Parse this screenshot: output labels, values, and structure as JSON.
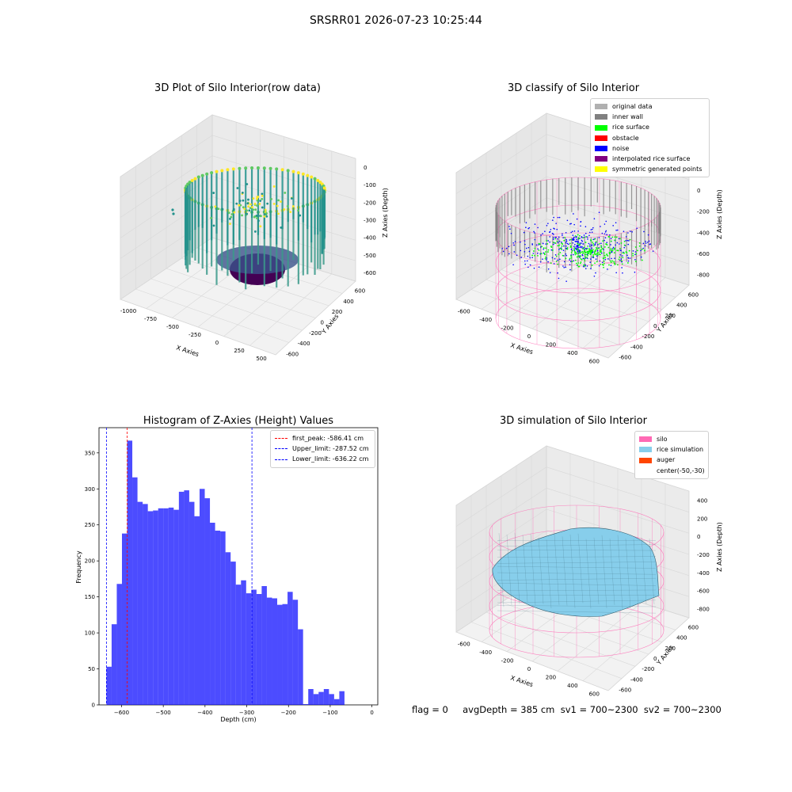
{
  "suptitle": "SRSRR01 2026-07-23 10:25:44",
  "footer": "flag = 0     avgDepth = 385 cm  sv1 = 700~2300  sv2 = 700~2300",
  "chart_data": [
    {
      "type": "scatter",
      "title": "3D Plot of Silo Interior(row data)",
      "xlabel": "X Axies",
      "ylabel": "Y Axies",
      "zlabel": "Z Axies (Depth)",
      "xticks": [
        "-1000",
        "-750",
        "-500",
        "-250",
        "0",
        "250",
        "500"
      ],
      "yticks": [
        "-600",
        "-400",
        "-200",
        "0",
        "200",
        "400",
        "600"
      ],
      "zticks": [
        "0",
        "-100",
        "-200",
        "-300",
        "-400",
        "-500",
        "-600"
      ],
      "colormap": "viridis"
    },
    {
      "type": "scatter",
      "title": "3D classify of Silo Interior",
      "xlabel": "X Axies",
      "ylabel": "Y Axies",
      "zlabel": "Z Axies (Depth)",
      "xticks": [
        "-600",
        "-400",
        "-200",
        "0",
        "200",
        "400",
        "600"
      ],
      "yticks": [
        "-600",
        "-400",
        "-200",
        "0",
        "200",
        "400",
        "600"
      ],
      "zticks": [
        "200",
        "0",
        "-200",
        "-400",
        "-600",
        "-800"
      ],
      "legend": [
        {
          "label": "original data",
          "color": "#b0b0b0"
        },
        {
          "label": "inner wall",
          "color": "#808080"
        },
        {
          "label": "rice surface",
          "color": "#00ff00"
        },
        {
          "label": "obstacle",
          "color": "#ff0000"
        },
        {
          "label": "noise",
          "color": "#0000ff"
        },
        {
          "label": "interpolated rice surface",
          "color": "#800080"
        },
        {
          "label": "symmetric generated points",
          "color": "#ffff00"
        }
      ]
    },
    {
      "type": "bar",
      "title": "Histogram of Z-Axies (Height) Values",
      "xlabel": "Depth (cm)",
      "ylabel": "Frequency",
      "xlim": [
        -654,
        14
      ],
      "ylim": [
        0,
        385
      ],
      "xticks": [
        -600,
        -500,
        -400,
        -300,
        -200,
        -100,
        0
      ],
      "yticks": [
        0,
        50,
        100,
        150,
        200,
        250,
        300,
        350
      ],
      "bin_width": 12.4,
      "bin_start": -636.2,
      "values": [
        53,
        112,
        168,
        238,
        367,
        316,
        282,
        279,
        269,
        270,
        273,
        273,
        274,
        271,
        296,
        298,
        282,
        262,
        300,
        287,
        253,
        242,
        241,
        212,
        199,
        167,
        173,
        155,
        160,
        154,
        165,
        149,
        148,
        139,
        140,
        157,
        146,
        105,
        1,
        22,
        15,
        18,
        22,
        15,
        8,
        19
      ],
      "lines": [
        {
          "label": "first_peak: -586.41 cm",
          "value": -586.41,
          "color": "#ff0000"
        },
        {
          "label": "Upper_limit: -287.52 cm",
          "value": -287.52,
          "color": "#0000ff"
        },
        {
          "label": "Lower_limit: -636.22 cm",
          "value": -636.22,
          "color": "#0000ff"
        }
      ]
    },
    {
      "type": "surface",
      "title": "3D simulation of Silo Interior",
      "xlabel": "X Axies",
      "ylabel": "Y Axies",
      "zlabel": "Z Axies (Depth)",
      "xticks": [
        "-600",
        "-400",
        "-200",
        "0",
        "200",
        "400",
        "600"
      ],
      "yticks": [
        "-600",
        "-400",
        "-200",
        "0",
        "200",
        "400",
        "600"
      ],
      "zticks": [
        "400",
        "200",
        "0",
        "-200",
        "-400",
        "-600",
        "-800"
      ],
      "legend": [
        {
          "label": "silo",
          "color": "#ff69b4"
        },
        {
          "label": "rice simulation",
          "color": "#87ceeb"
        },
        {
          "label": "auger",
          "color": "#ff4500"
        },
        {
          "label": "center(-50,-30)",
          "color": ""
        }
      ]
    }
  ]
}
